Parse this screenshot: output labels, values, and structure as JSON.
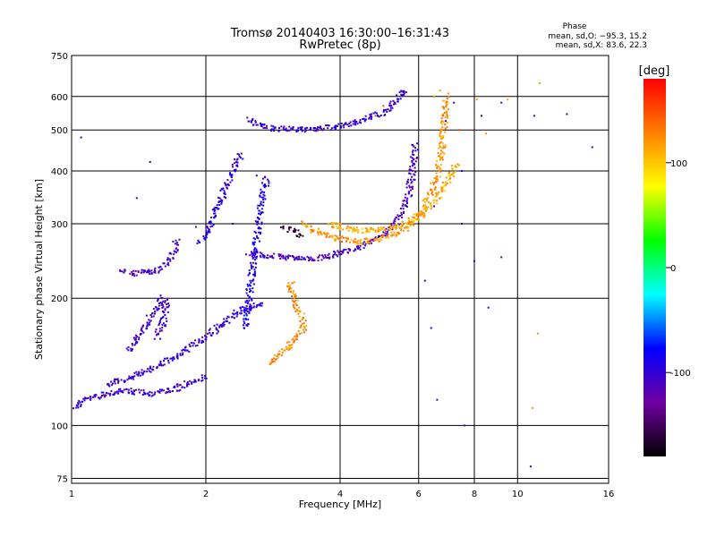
{
  "chart_data": {
    "type": "scatter",
    "title": "Tromsø 20140403 16:30:00–16:31:43",
    "subtitle": "RwPretec (8p)",
    "xlabel": "Frequency [MHz]",
    "ylabel": "Stationary phase Virtual Height [km]",
    "x_scale": "log",
    "y_scale": "log",
    "xlim": [
      1,
      16
    ],
    "ylim": [
      73,
      750
    ],
    "x_ticks": [
      1,
      2,
      4,
      6,
      8,
      10,
      16
    ],
    "y_ticks": [
      75,
      100,
      200,
      300,
      400,
      500,
      600,
      750
    ],
    "grid": true,
    "stats": {
      "heading": "Phase",
      "o_line": "mean, sd,O: −95.3, 15.2",
      "x_line": "mean, sd,X:  83.6, 22.3"
    },
    "colorbar": {
      "label": "[deg]",
      "range": [
        -180,
        180
      ],
      "ticks": [
        100,
        0,
        -100
      ],
      "colors": [
        "#ff0000",
        "#ff8000",
        "#ffff00",
        "#00ff00",
        "#00ffff",
        "#0000ff",
        "#7000a0",
        "#000000"
      ]
    },
    "traces": [
      {
        "phase": -105,
        "points": [
          [
            1.0,
            110
          ],
          [
            1.04,
            112
          ],
          [
            1.08,
            116
          ],
          [
            1.14,
            117
          ],
          [
            1.2,
            119
          ],
          [
            1.3,
            121
          ],
          [
            1.4,
            120
          ],
          [
            1.5,
            119
          ],
          [
            1.6,
            120
          ],
          [
            1.7,
            122
          ],
          [
            1.8,
            125
          ],
          [
            1.9,
            128
          ],
          [
            2.0,
            130
          ]
        ]
      },
      {
        "phase": -100,
        "points": [
          [
            1.2,
            125
          ],
          [
            1.3,
            128
          ],
          [
            1.4,
            132
          ],
          [
            1.5,
            136
          ],
          [
            1.6,
            140
          ],
          [
            1.7,
            145
          ],
          [
            1.8,
            150
          ],
          [
            1.9,
            156
          ],
          [
            2.0,
            162
          ],
          [
            2.1,
            168
          ],
          [
            2.2,
            175
          ],
          [
            2.3,
            182
          ],
          [
            2.4,
            188
          ],
          [
            2.5,
            190
          ],
          [
            2.6,
            193
          ],
          [
            2.7,
            195
          ]
        ]
      },
      {
        "phase": -105,
        "points": [
          [
            1.35,
            150
          ],
          [
            1.4,
            160
          ],
          [
            1.45,
            170
          ],
          [
            1.5,
            180
          ],
          [
            1.55,
            190
          ],
          [
            1.6,
            200
          ],
          [
            1.63,
            190
          ],
          [
            1.6,
            175
          ],
          [
            1.55,
            160
          ]
        ]
      },
      {
        "phase": -110,
        "points": [
          [
            1.3,
            231
          ],
          [
            1.35,
            230
          ],
          [
            1.4,
            229
          ],
          [
            1.5,
            231
          ],
          [
            1.55,
            232
          ],
          [
            1.6,
            238
          ],
          [
            1.65,
            245
          ],
          [
            1.7,
            262
          ],
          [
            1.72,
            276
          ]
        ]
      },
      {
        "phase": -95,
        "points": [
          [
            1.95,
            270
          ],
          [
            2.0,
            285
          ],
          [
            2.05,
            300
          ],
          [
            2.1,
            320
          ],
          [
            2.15,
            340
          ],
          [
            2.2,
            360
          ],
          [
            2.25,
            380
          ],
          [
            2.3,
            400
          ],
          [
            2.35,
            420
          ],
          [
            2.4,
            440
          ]
        ]
      },
      {
        "phase": -110,
        "points": [
          [
            2.5,
            255
          ],
          [
            2.6,
            253
          ],
          [
            2.8,
            252
          ],
          [
            3.0,
            250
          ],
          [
            3.2,
            248
          ],
          [
            3.4,
            247
          ],
          [
            3.6,
            249
          ],
          [
            3.8,
            252
          ],
          [
            4.0,
            257
          ],
          [
            4.3,
            262
          ],
          [
            4.6,
            270
          ],
          [
            5.0,
            282
          ],
          [
            5.3,
            298
          ],
          [
            5.5,
            320
          ],
          [
            5.7,
            355
          ],
          [
            5.8,
            390
          ],
          [
            5.85,
            430
          ],
          [
            5.9,
            465
          ]
        ]
      },
      {
        "phase": -100,
        "points": [
          [
            2.5,
            530
          ],
          [
            2.6,
            515
          ],
          [
            2.8,
            505
          ],
          [
            3.0,
            502
          ],
          [
            3.3,
            501
          ],
          [
            3.6,
            503
          ],
          [
            4.0,
            510
          ],
          [
            4.5,
            525
          ],
          [
            5.0,
            550
          ],
          [
            5.3,
            580
          ],
          [
            5.5,
            610
          ],
          [
            5.6,
            630
          ]
        ]
      },
      {
        "phase": 120,
        "points": [
          [
            3.3,
            300
          ],
          [
            3.5,
            290
          ],
          [
            3.7,
            282
          ],
          [
            4.0,
            276
          ],
          [
            4.3,
            272
          ],
          [
            4.6,
            273
          ],
          [
            5.0,
            278
          ],
          [
            5.4,
            285
          ],
          [
            5.8,
            300
          ],
          [
            6.2,
            330
          ],
          [
            6.5,
            370
          ],
          [
            6.7,
            420
          ],
          [
            6.8,
            470
          ],
          [
            6.85,
            520
          ],
          [
            6.9,
            560
          ],
          [
            6.95,
            600
          ]
        ]
      },
      {
        "phase": 110,
        "points": [
          [
            3.8,
            300
          ],
          [
            4.0,
            295
          ],
          [
            4.3,
            290
          ],
          [
            4.6,
            289
          ],
          [
            5.0,
            291
          ],
          [
            5.4,
            296
          ],
          [
            5.8,
            305
          ],
          [
            6.2,
            320
          ],
          [
            6.6,
            345
          ],
          [
            7.0,
            380
          ],
          [
            7.3,
            420
          ]
        ]
      },
      {
        "phase": 125,
        "points": [
          [
            2.8,
            140
          ],
          [
            2.9,
            145
          ],
          [
            3.0,
            150
          ],
          [
            3.1,
            155
          ],
          [
            3.2,
            162
          ],
          [
            3.3,
            170
          ],
          [
            3.3,
            180
          ],
          [
            3.2,
            190
          ],
          [
            3.15,
            200
          ],
          [
            3.1,
            210
          ],
          [
            3.1,
            220
          ]
        ]
      },
      {
        "phase": -90,
        "points": [
          [
            2.45,
            170
          ],
          [
            2.5,
            200
          ],
          [
            2.55,
            240
          ],
          [
            2.6,
            280
          ],
          [
            2.65,
            320
          ],
          [
            2.7,
            360
          ],
          [
            2.75,
            390
          ]
        ]
      },
      {
        "phase": -160,
        "points": [
          [
            3.0,
            295
          ],
          [
            3.1,
            290
          ],
          [
            3.2,
            285
          ],
          [
            3.3,
            280
          ]
        ]
      }
    ],
    "scatter": [
      {
        "phase": -100,
        "points": [
          [
            1.05,
            480
          ],
          [
            1.5,
            420
          ],
          [
            1.4,
            345
          ],
          [
            1.9,
            295
          ],
          [
            2.3,
            300
          ],
          [
            2.6,
            390
          ],
          [
            6.5,
            330
          ],
          [
            6.9,
            525
          ],
          [
            7.2,
            580
          ],
          [
            7.5,
            400
          ],
          [
            8.3,
            540
          ],
          [
            9.2,
            580
          ],
          [
            10.9,
            540
          ],
          [
            12.9,
            545
          ],
          [
            14.7,
            455
          ],
          [
            8.6,
            190
          ],
          [
            7.6,
            100
          ],
          [
            10.7,
            80
          ],
          [
            6.2,
            220
          ],
          [
            6.4,
            170
          ],
          [
            6.6,
            115
          ],
          [
            7.5,
            300
          ],
          [
            9.2,
            250
          ],
          [
            8.0,
            245
          ]
        ]
      },
      {
        "phase": 120,
        "points": [
          [
            6.5,
            600
          ],
          [
            6.7,
            620
          ],
          [
            7.0,
            610
          ],
          [
            8.1,
            590
          ],
          [
            8.5,
            490
          ],
          [
            10.8,
            110
          ],
          [
            11.1,
            165
          ],
          [
            11.2,
            645
          ],
          [
            9.5,
            590
          ]
        ]
      },
      {
        "phase": 150,
        "points": [
          [
            6.8,
            540
          ],
          [
            7.4,
            500
          ],
          [
            4.8,
            540
          ],
          [
            5.0,
            570
          ]
        ]
      }
    ]
  }
}
